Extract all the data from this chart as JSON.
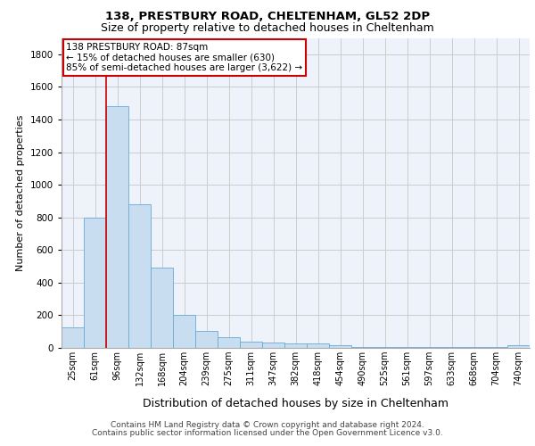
{
  "title1": "138, PRESTBURY ROAD, CHELTENHAM, GL52 2DP",
  "title2": "Size of property relative to detached houses in Cheltenham",
  "xlabel": "Distribution of detached houses by size in Cheltenham",
  "ylabel": "Number of detached properties",
  "footer1": "Contains HM Land Registry data © Crown copyright and database right 2024.",
  "footer2": "Contains public sector information licensed under the Open Government Licence v3.0.",
  "annotation_line1": "138 PRESTBURY ROAD: 87sqm",
  "annotation_line2": "← 15% of detached houses are smaller (630)",
  "annotation_line3": "85% of semi-detached houses are larger (3,622) →",
  "bar_labels": [
    "25sqm",
    "61sqm",
    "96sqm",
    "132sqm",
    "168sqm",
    "204sqm",
    "239sqm",
    "275sqm",
    "311sqm",
    "347sqm",
    "382sqm",
    "418sqm",
    "454sqm",
    "490sqm",
    "525sqm",
    "561sqm",
    "597sqm",
    "633sqm",
    "668sqm",
    "704sqm",
    "740sqm"
  ],
  "bar_values": [
    125,
    800,
    1480,
    880,
    490,
    205,
    105,
    65,
    40,
    35,
    30,
    25,
    15,
    7,
    5,
    5,
    5,
    5,
    5,
    5,
    15
  ],
  "bar_color": "#c9ddf0",
  "bar_edge_color": "#6aaad4",
  "vline_x": 1.5,
  "vline_color": "#cc0000",
  "ylim": [
    0,
    1900
  ],
  "yticks": [
    0,
    200,
    400,
    600,
    800,
    1000,
    1200,
    1400,
    1600,
    1800
  ],
  "grid_color": "#cccccc",
  "bg_color": "#eef2fa",
  "annotation_box_facecolor": "#ffffff",
  "annotation_box_edgecolor": "#cc0000",
  "title1_fontsize": 9.5,
  "title2_fontsize": 9.0,
  "ylabel_fontsize": 8.0,
  "xlabel_fontsize": 9.0,
  "tick_fontsize": 7.5,
  "xtick_fontsize": 7.0,
  "ann_fontsize": 7.5,
  "footer_fontsize": 6.5
}
